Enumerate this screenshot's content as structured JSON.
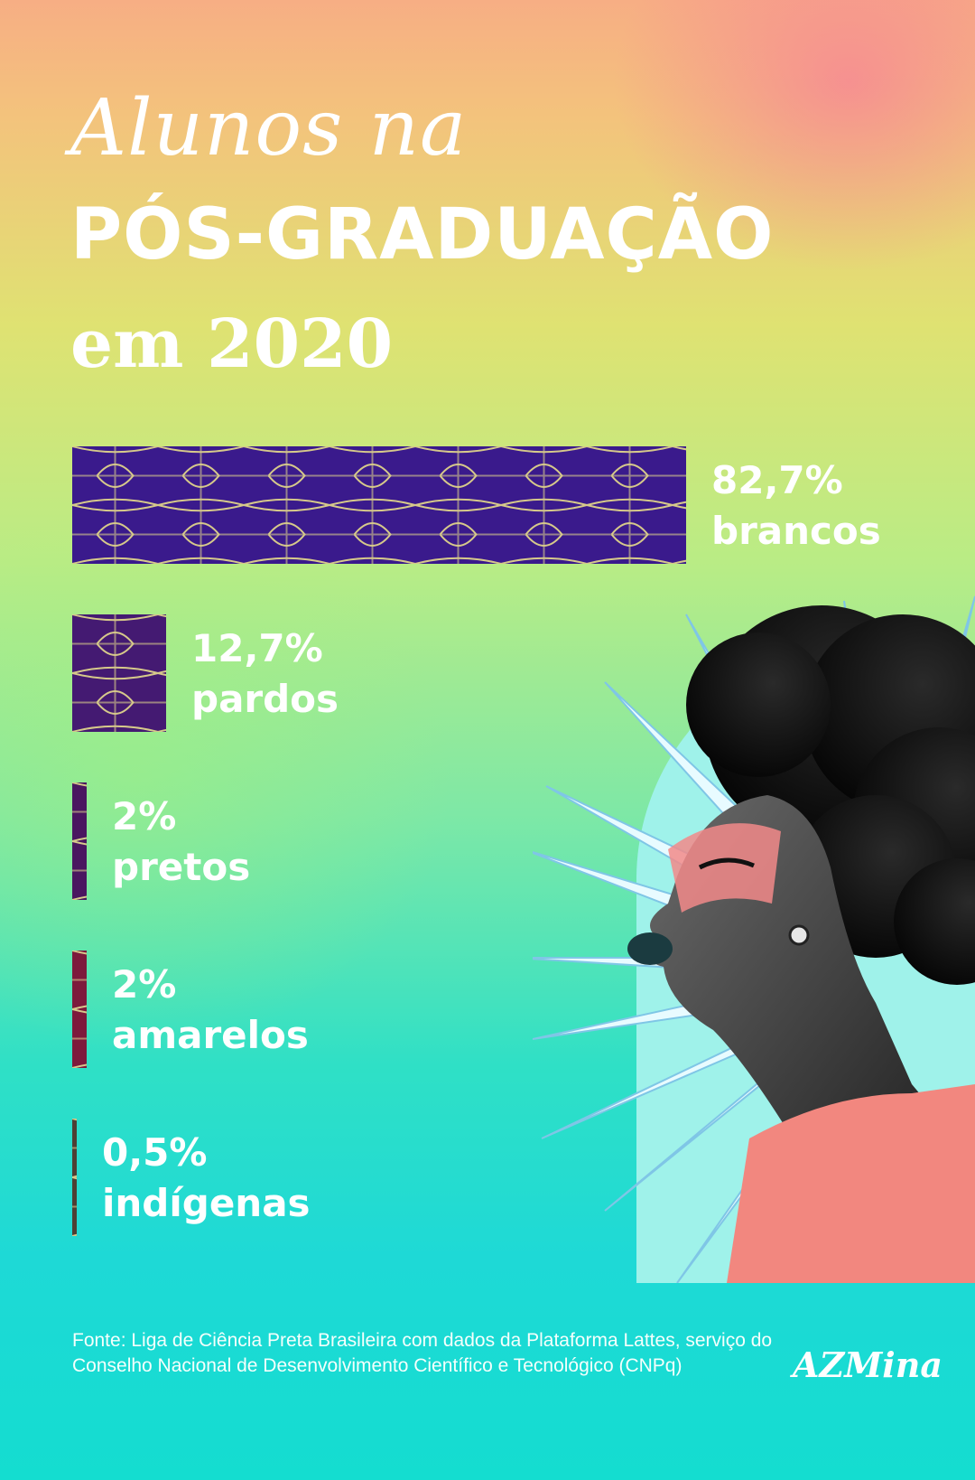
{
  "title": {
    "line1": "Alunos na",
    "line2": "PÓS-GRADUAÇÃO",
    "line3": "em 2020"
  },
  "chart_data": {
    "type": "bar",
    "orientation": "horizontal",
    "categories": [
      "brancos",
      "pardos",
      "pretos",
      "amarelos",
      "indígenas"
    ],
    "values": [
      82.7,
      12.7,
      2,
      2,
      0.5
    ],
    "value_labels": [
      "82,7%",
      "12,7%",
      "2%",
      "2%",
      "0,5%"
    ],
    "unit": "%",
    "xlim": [
      0,
      82.7
    ],
    "bar_colors": [
      "#3a1a8c",
      "#441a72",
      "#4a1660",
      "#7d1a3c",
      "#4e3f34"
    ]
  },
  "labels": [
    {
      "value": "82,7%",
      "name": "brancos"
    },
    {
      "value": "12,7%",
      "name": "pardos"
    },
    {
      "value": "2%",
      "name": "pretos"
    },
    {
      "value": "2%",
      "name": "amarelos"
    },
    {
      "value": "0,5%",
      "name": "indígenas"
    }
  ],
  "source": "Fonte: Liga de Ciência Preta Brasileira com dados da Plataforma Lattes, serviço do Conselho Nacional de Desenvolvimento Científico e Tecnológico (CNPq)",
  "logo": "AZMina",
  "colors": {
    "pattern_line": "#d6c98a",
    "text": "#ffffff",
    "accent_pink": "#f28a8a"
  }
}
